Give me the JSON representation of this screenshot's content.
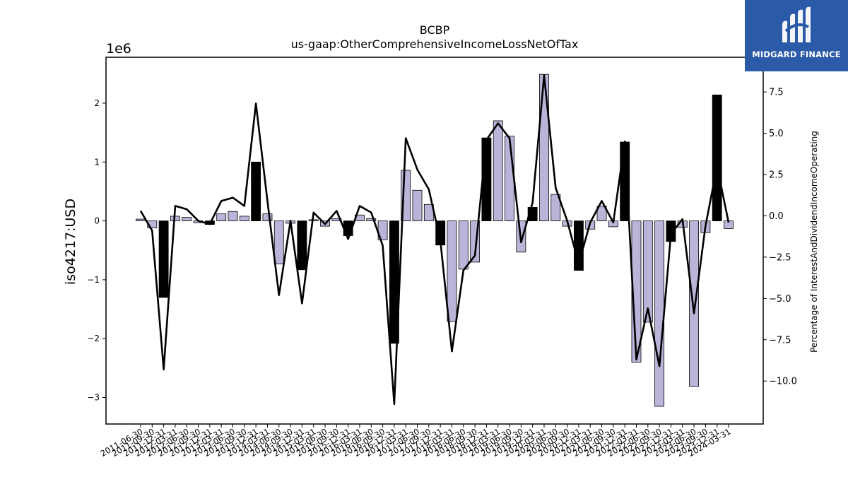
{
  "chart_data": {
    "type": "bar+line",
    "title": "BCBP",
    "subtitle": "us-gaap:OtherComprehensiveIncomeLossNetOfTax",
    "ylabel": "iso4217:USD",
    "y2label": "Percentage of InterestAndDividendIncomeOperating",
    "y_offset_label": "1e6",
    "ylim": [
      -3.45,
      2.78
    ],
    "y2lim": [
      -12.6,
      9.6
    ],
    "yticks": [
      -3,
      -2,
      -1,
      0,
      1,
      2
    ],
    "y2ticks": [
      -10.0,
      -7.5,
      -5.0,
      -2.5,
      0.0,
      2.5,
      5.0,
      7.5
    ],
    "grid": false,
    "colors": {
      "bar": "#b8b5d9",
      "bar_highlight": "#000000",
      "line": "#000000"
    },
    "categories": [
      "2011-06-30",
      "2011-09-30",
      "2011-12-31",
      "2012-03-31",
      "2012-06-30",
      "2012-09-30",
      "2012-12-31",
      "2013-03-31",
      "2013-06-30",
      "2013-09-30",
      "2013-12-31",
      "2014-03-31",
      "2014-06-30",
      "2014-09-30",
      "2014-12-31",
      "2015-03-31",
      "2015-06-30",
      "2015-09-30",
      "2015-12-31",
      "2016-03-31",
      "2016-06-30",
      "2016-09-30",
      "2016-12-31",
      "2017-03-31",
      "2017-06-30",
      "2017-09-30",
      "2017-12-31",
      "2018-03-31",
      "2018-06-30",
      "2018-09-30",
      "2018-12-31",
      "2019-03-31",
      "2019-06-30",
      "2019-09-30",
      "2019-12-31",
      "2020-03-31",
      "2020-06-30",
      "2020-09-30",
      "2020-12-31",
      "2021-03-31",
      "2021-06-30",
      "2021-09-30",
      "2021-12-31",
      "2022-03-31",
      "2022-06-30",
      "2022-09-30",
      "2022-12-31",
      "2023-03-31",
      "2023-06-30",
      "2023-09-30",
      "2023-12-31",
      "2024-03-31"
    ],
    "bar_values": [
      0.03,
      -0.12,
      -1.3,
      0.08,
      0.06,
      -0.03,
      -0.06,
      0.12,
      0.16,
      0.08,
      1.0,
      0.12,
      -0.73,
      -0.04,
      -0.83,
      0.02,
      -0.09,
      0.04,
      -0.25,
      0.1,
      0.04,
      -0.32,
      -2.08,
      0.86,
      0.52,
      0.28,
      -0.41,
      -1.71,
      -0.82,
      -0.7,
      1.41,
      1.7,
      1.44,
      -0.53,
      0.23,
      2.49,
      0.45,
      -0.09,
      -0.84,
      -0.14,
      0.25,
      -0.1,
      1.34,
      -2.4,
      -1.72,
      -3.15,
      -0.35,
      -0.11,
      -2.81,
      -0.2,
      2.14,
      -0.13
    ],
    "bar_highlight": [
      false,
      false,
      true,
      false,
      false,
      false,
      true,
      false,
      false,
      false,
      true,
      false,
      false,
      false,
      true,
      false,
      false,
      false,
      true,
      false,
      false,
      false,
      true,
      false,
      false,
      false,
      true,
      false,
      false,
      false,
      true,
      false,
      false,
      false,
      true,
      false,
      false,
      false,
      true,
      false,
      false,
      false,
      true,
      false,
      false,
      false,
      true,
      false,
      false,
      false,
      true,
      false
    ],
    "line_values": [
      0.3,
      -0.9,
      -9.3,
      0.6,
      0.4,
      -0.3,
      -0.5,
      0.9,
      1.1,
      0.6,
      6.8,
      0.9,
      -4.8,
      -0.3,
      -5.3,
      0.2,
      -0.5,
      0.3,
      -1.4,
      0.6,
      0.2,
      -1.8,
      -11.4,
      4.7,
      2.8,
      1.6,
      -1.5,
      -8.2,
      -3.3,
      -2.4,
      4.6,
      5.6,
      4.7,
      -1.6,
      0.8,
      8.5,
      1.7,
      -0.3,
      -2.9,
      -0.4,
      0.9,
      -0.4,
      4.5,
      -8.7,
      -5.6,
      -9.1,
      -1.1,
      -0.2,
      -5.9,
      -0.6,
      3.0,
      -0.4
    ]
  },
  "logo": {
    "text": "MIDGARD FINANCE"
  }
}
